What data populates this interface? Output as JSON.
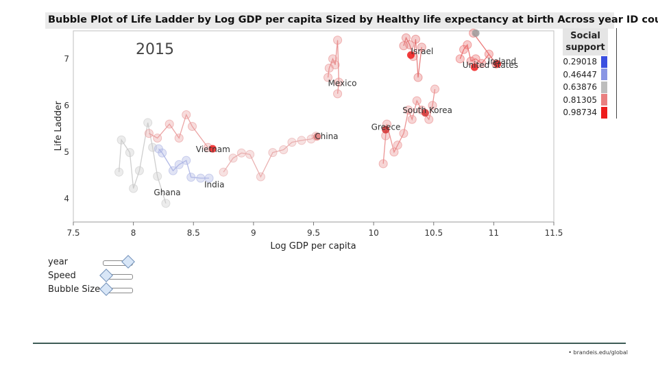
{
  "chart_data": {
    "type": "scatter",
    "title": "Bubble Plot of Life Ladder by Log GDP per capita Sized by Healthy life expectancy at birth Across year ID country",
    "xlabel": "Log GDP per capita",
    "ylabel": "Life Ladder",
    "frame_label": "2015",
    "xlim": [
      7.5,
      11.5
    ],
    "ylim": [
      3.5,
      7.6
    ],
    "x_ticks": [
      "7.5",
      "8",
      "8.5",
      "9",
      "9.5",
      "10",
      "10.5",
      "11",
      "11.5"
    ],
    "y_ticks": [
      "4",
      "5",
      "6",
      "7"
    ],
    "grid": false,
    "legend": {
      "title": "Social support",
      "position": "right",
      "entries": [
        {
          "label": "0.29018",
          "color": "#3a4fe0"
        },
        {
          "label": "0.46447",
          "color": "#8a96e4"
        },
        {
          "label": "0.63876",
          "color": "#bdbdbd"
        },
        {
          "label": "0.81305",
          "color": "#e97f7f"
        },
        {
          "label": "0.98734",
          "color": "#ee1c1c"
        }
      ]
    },
    "country_labels": [
      {
        "name": "Israel",
        "x": 10.31,
        "y": 7.1
      },
      {
        "name": "Mexico",
        "x": 9.62,
        "y": 6.42
      },
      {
        "name": "Ireland",
        "x": 10.95,
        "y": 6.89
      },
      {
        "name": "United States",
        "x": 10.74,
        "y": 6.81
      },
      {
        "name": "South Korea",
        "x": 10.24,
        "y": 5.84
      },
      {
        "name": "Greece",
        "x": 9.98,
        "y": 5.48
      },
      {
        "name": "China",
        "x": 9.51,
        "y": 5.28
      },
      {
        "name": "Vietnam",
        "x": 8.52,
        "y": 5.0
      },
      {
        "name": "India",
        "x": 8.59,
        "y": 4.24
      },
      {
        "name": "Ghana",
        "x": 8.17,
        "y": 4.07
      }
    ],
    "series": [
      {
        "values": [
          [
            7.88,
            4.57
          ],
          [
            7.9,
            5.26
          ],
          [
            7.97,
            4.99
          ],
          [
            8.0,
            4.22
          ],
          [
            8.05,
            4.6
          ],
          [
            8.12,
            5.63
          ],
          [
            8.16,
            5.1
          ],
          [
            8.2,
            4.48
          ],
          [
            8.27,
            3.9
          ]
        ],
        "color": "#c9c9c9"
      },
      {
        "values": [
          [
            8.13,
            5.4
          ],
          [
            8.2,
            5.3
          ],
          [
            8.3,
            5.6
          ],
          [
            8.38,
            5.3
          ],
          [
            8.44,
            5.8
          ],
          [
            8.49,
            5.55
          ],
          [
            8.62,
            5.1
          ]
        ],
        "color": "#e99a9a"
      },
      {
        "values": [
          [
            8.21,
            5.07
          ],
          [
            8.24,
            4.98
          ],
          [
            8.33,
            4.6
          ],
          [
            8.38,
            4.73
          ],
          [
            8.44,
            4.82
          ],
          [
            8.48,
            4.46
          ],
          [
            8.56,
            4.44
          ],
          [
            8.63,
            4.44
          ]
        ],
        "color": "#aab2e3"
      },
      {
        "values": [
          [
            8.75,
            4.57
          ],
          [
            8.83,
            4.87
          ],
          [
            8.9,
            4.98
          ],
          [
            8.97,
            4.95
          ],
          [
            9.06,
            4.47
          ],
          [
            9.16,
            4.99
          ],
          [
            9.25,
            5.05
          ],
          [
            9.32,
            5.21
          ],
          [
            9.4,
            5.25
          ],
          [
            9.48,
            5.28
          ],
          [
            9.52,
            5.34
          ]
        ],
        "color": "#e8a9a9"
      },
      {
        "values": [
          [
            9.62,
            6.6
          ],
          [
            9.63,
            6.8
          ],
          [
            9.66,
            7.0
          ],
          [
            9.68,
            6.87
          ],
          [
            9.7,
            7.4
          ],
          [
            9.71,
            6.5
          ],
          [
            9.7,
            6.25
          ]
        ],
        "color": "#e78c8c"
      },
      {
        "values": [
          [
            10.08,
            4.75
          ],
          [
            10.1,
            5.35
          ],
          [
            10.11,
            5.6
          ],
          [
            10.17,
            5.0
          ],
          [
            10.2,
            5.15
          ],
          [
            10.25,
            5.4
          ],
          [
            10.29,
            5.9
          ],
          [
            10.32,
            5.7
          ],
          [
            10.36,
            6.1
          ],
          [
            10.4,
            5.9
          ],
          [
            10.46,
            5.7
          ],
          [
            10.49,
            6.0
          ],
          [
            10.51,
            6.35
          ]
        ],
        "color": "#e98888"
      },
      {
        "values": [
          [
            10.25,
            7.28
          ],
          [
            10.27,
            7.45
          ],
          [
            10.3,
            7.3
          ],
          [
            10.33,
            7.05
          ],
          [
            10.35,
            7.42
          ],
          [
            10.37,
            6.6
          ],
          [
            10.4,
            7.25
          ]
        ],
        "color": "#e37070"
      },
      {
        "values": [
          [
            10.72,
            7.0
          ],
          [
            10.75,
            7.2
          ],
          [
            10.78,
            7.3
          ],
          [
            10.81,
            6.95
          ],
          [
            10.85,
            7.0
          ],
          [
            10.9,
            6.9
          ],
          [
            10.96,
            7.1
          ],
          [
            11.02,
            6.89
          ],
          [
            10.83,
            7.55
          ]
        ],
        "color": "#ea6a6a"
      }
    ],
    "highlighted_points": [
      {
        "x": 10.31,
        "y": 7.08,
        "color": "#ee1c1c"
      },
      {
        "x": 10.84,
        "y": 6.82,
        "color": "#ee1c1c"
      },
      {
        "x": 11.03,
        "y": 6.89,
        "color": "#ee1c1c"
      },
      {
        "x": 10.43,
        "y": 5.84,
        "color": "#d43030"
      },
      {
        "x": 9.53,
        "y": 5.33,
        "color": "#e07a7a"
      },
      {
        "x": 8.66,
        "y": 5.07,
        "color": "#ee1c1c"
      },
      {
        "x": 10.1,
        "y": 5.48,
        "color": "#d43030"
      },
      {
        "x": 10.85,
        "y": 7.55,
        "color": "#9e9e9e"
      }
    ]
  },
  "controls": {
    "year_label": "year",
    "speed_label": "Speed",
    "bubble_label": "Bubble Size",
    "year_pos": 1.0,
    "speed_pos": 0.0,
    "bubble_pos": 0.0
  },
  "footer": {
    "text": "• brandeis.edu/global"
  }
}
